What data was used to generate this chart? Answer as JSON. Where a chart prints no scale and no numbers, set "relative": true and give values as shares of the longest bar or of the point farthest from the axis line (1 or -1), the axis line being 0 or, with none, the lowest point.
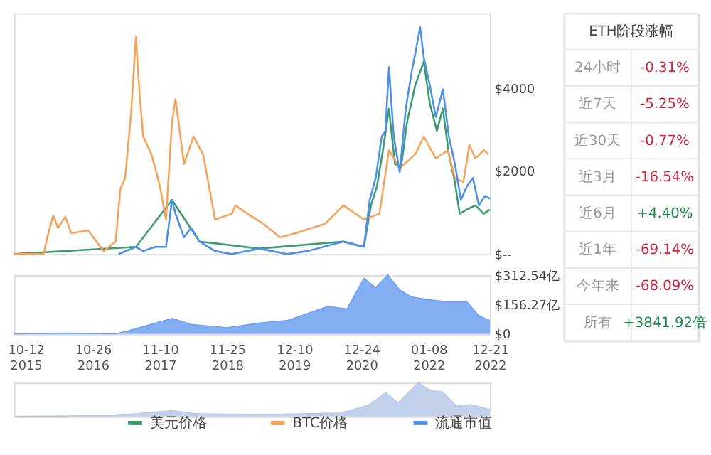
{
  "chart_data": [
    {
      "type": "line",
      "legend": "bottom",
      "tick_labels": "y",
      "xlim": [
        "2015-08-07",
        "2022-12-21"
      ],
      "ylim": [
        0,
        5800
      ],
      "yticks": [
        {
          "value": 0,
          "label": "$--"
        },
        {
          "value": 2000,
          "label": "$2000"
        },
        {
          "value": 4000,
          "label": "$4000"
        }
      ],
      "series": [
        {
          "name": "美元价格",
          "color": "#3a9c6e",
          "x": [
            "2015-08-07",
            "2017-06-27",
            "2018-01-17",
            "2018-06-22",
            "2019-05-27",
            "2020-09-13",
            "2021-01-07",
            "2021-02-16",
            "2021-03-22",
            "2021-04-25",
            "2021-05-29",
            "2021-07-02",
            "2021-08-05",
            "2021-09-08",
            "2021-10-25",
            "2021-12-12",
            "2022-01-15",
            "2022-02-24",
            "2022-03-30",
            "2022-05-03",
            "2022-06-06",
            "2022-07-03",
            "2022-08-13",
            "2022-09-30",
            "2022-11-16",
            "2022-12-21"
          ],
          "values": [
            0,
            170,
            1300,
            300,
            130,
            300,
            170,
            1170,
            1630,
            2500,
            3500,
            2170,
            2070,
            3170,
            4070,
            4630,
            3630,
            2970,
            3500,
            2400,
            1730,
            970,
            1070,
            1170,
            970,
            1070
          ]
        },
        {
          "name": "BTC价格",
          "color": "#f5a35c",
          "x": [
            "2015-08-07",
            "2015-10-26",
            "2016-01-22",
            "2016-02-11",
            "2016-03-16",
            "2016-04-12",
            "2016-05-23",
            "2016-06-26",
            "2016-09-29",
            "2016-12-26",
            "2017-03-04",
            "2017-03-31",
            "2017-04-27",
            "2017-05-31",
            "2017-06-27",
            "2017-07-18",
            "2017-08-07",
            "2017-09-23",
            "2017-11-10",
            "2017-12-14",
            "2018-01-17",
            "2018-02-06",
            "2018-03-26",
            "2018-05-19",
            "2018-07-12",
            "2018-09-18",
            "2018-12-22",
            "2019-01-11",
            "2019-03-20",
            "2019-06-17",
            "2019-09-20",
            "2019-12-17",
            "2020-06-03",
            "2020-09-13",
            "2021-01-07",
            "2021-04-05",
            "2021-05-29",
            "2021-07-29",
            "2021-10-25",
            "2021-12-12",
            "2022-02-18",
            "2022-04-27",
            "2022-06-06",
            "2022-07-24",
            "2022-08-27",
            "2022-09-30",
            "2022-11-16",
            "2022-12-14"
          ],
          "values": [
            0,
            0,
            0,
            400,
            930,
            630,
            900,
            500,
            570,
            70,
            300,
            1570,
            1830,
            3400,
            5230,
            3830,
            2830,
            2400,
            1630,
            830,
            3170,
            3730,
            2170,
            2830,
            2400,
            830,
            970,
            1170,
            970,
            730,
            400,
            500,
            730,
            1170,
            830,
            970,
            2500,
            2070,
            2400,
            2830,
            2300,
            2500,
            1830,
            1730,
            2630,
            2300,
            2500,
            2400
          ]
        },
        {
          "name": "流通市值",
          "color": "#4e8fe8",
          "x": [
            "2017-03-21",
            "2017-06-27",
            "2017-08-07",
            "2017-10-14",
            "2017-12-14",
            "2018-01-17",
            "2018-02-06",
            "2018-03-26",
            "2018-05-05",
            "2018-06-22",
            "2018-09-18",
            "2018-12-22",
            "2019-05-27",
            "2019-10-29",
            "2020-02-23",
            "2020-09-13",
            "2021-01-07",
            "2021-02-09",
            "2021-03-15",
            "2021-04-18",
            "2021-05-09",
            "2021-05-29",
            "2021-06-25",
            "2021-07-29",
            "2021-09-01",
            "2021-10-05",
            "2021-10-25",
            "2021-11-21",
            "2021-12-12",
            "2022-01-15",
            "2022-02-18",
            "2022-03-30",
            "2022-05-03",
            "2022-06-06",
            "2022-07-10",
            "2022-08-13",
            "2022-09-16",
            "2022-10-20",
            "2022-11-23",
            "2022-12-21"
          ],
          "values": [
            0,
            170,
            70,
            170,
            170,
            1300,
            970,
            400,
            630,
            300,
            70,
            0,
            130,
            0,
            70,
            300,
            170,
            1300,
            1830,
            2830,
            2970,
            4500,
            2830,
            1970,
            3500,
            4400,
            4830,
            5470,
            4730,
            4070,
            3300,
            3970,
            2830,
            2170,
            1300,
            1630,
            1830,
            1170,
            1400,
            1330
          ]
        }
      ]
    },
    {
      "type": "area",
      "xlim": [
        "2015-08-07",
        "2022-12-21"
      ],
      "ylim": [
        0,
        312.54
      ],
      "yticks": [
        {
          "value": 0,
          "label": "$0"
        },
        {
          "value": 156.27,
          "label": "$156.27亿"
        },
        {
          "value": 312.54,
          "label": "$312.54亿"
        }
      ],
      "xticks": [
        {
          "value": "2015-10-12",
          "label": "10-12 2015"
        },
        {
          "value": "2016-10-26",
          "label": "10-26 2016"
        },
        {
          "value": "2017-11-10",
          "label": "11-10 2017"
        },
        {
          "value": "2018-11-25",
          "label": "11-25 2018"
        },
        {
          "value": "2019-12-10",
          "label": "12-10 2019"
        },
        {
          "value": "2020-12-24",
          "label": "12-24 2020"
        },
        {
          "value": "2022-01-08",
          "label": "01-08 2022"
        },
        {
          "value": "2022-12-21",
          "label": "12-21 2022"
        }
      ],
      "series": [
        {
          "color": "#6fa0f0",
          "x": [
            "2015-08-07",
            "2016-06-01",
            "2017-03-04",
            "2017-05-11",
            "2018-01-17",
            "2018-05-05",
            "2018-11-25",
            "2019-05-27",
            "2019-10-29",
            "2020-02-23",
            "2020-06-17",
            "2020-10-04",
            "2021-01-07",
            "2021-03-15",
            "2021-05-22",
            "2021-07-29",
            "2021-10-05",
            "2022-01-01",
            "2022-04-27",
            "2022-08-13",
            "2022-10-20",
            "2022-12-21"
          ],
          "values": [
            0,
            3,
            0,
            15,
            82,
            50,
            32,
            57,
            70,
            107,
            145,
            132,
            295,
            245,
            312.54,
            232,
            195,
            182,
            170,
            170,
            95,
            70
          ]
        }
      ]
    },
    {
      "type": "area",
      "relative": true,
      "tick_labels": false,
      "xlim": [
        "2015-08-07",
        "2022-12-21"
      ],
      "series": [
        {
          "color": "#b9c9e6",
          "x": [
            "2015-08-07",
            "2017-03-01",
            "2018-01-17",
            "2018-06-01",
            "2019-06-01",
            "2020-09-01",
            "2021-02-01",
            "2021-05-12",
            "2021-07-20",
            "2021-11-10",
            "2022-01-15",
            "2022-03-30",
            "2022-06-15",
            "2022-09-01",
            "2022-12-21"
          ],
          "values": [
            0,
            0.02,
            0.17,
            0.08,
            0.05,
            0.1,
            0.33,
            0.7,
            0.4,
            1.0,
            0.78,
            0.72,
            0.3,
            0.35,
            0.2
          ]
        }
      ]
    },
    {
      "type": "other",
      "title": "ETH阶段涨幅",
      "categories": [
        "24小时",
        "近7天",
        "近30天",
        "近3月",
        "近6月",
        "近1年",
        "今年来",
        "所有"
      ],
      "series": [
        {
          "color": "#d0243b",
          "values": [
            -0.31,
            -5.25,
            -0.77,
            -16.54,
            null,
            -69.14,
            -68.09,
            null
          ],
          "value_labels": [
            "-0.31%",
            "-5.25%",
            "-0.77%",
            "-16.54%",
            null,
            "-69.14%",
            "-68.09%",
            null
          ]
        },
        {
          "color": "#1f8a4e",
          "values": [
            null,
            null,
            null,
            null,
            4.4,
            null,
            null,
            3841.92
          ],
          "value_labels": [
            null,
            null,
            null,
            null,
            "+4.40%",
            null,
            null,
            "+3841.92倍"
          ]
        }
      ]
    }
  ]
}
